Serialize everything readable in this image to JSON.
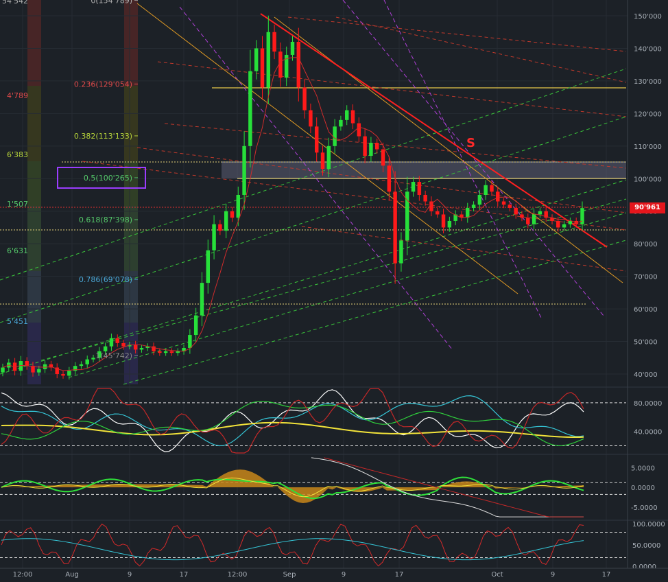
{
  "chart_data": [
    {
      "type": "candlestick",
      "pane": "price",
      "y_axis_ticks": [
        "150'000",
        "140'000",
        "130'000",
        "120'000",
        "110'000",
        "100'000",
        "90'000",
        "80'000",
        "70'000",
        "60'000",
        "50'000",
        "40'000"
      ],
      "y_axis_values": [
        150000,
        140000,
        130000,
        120000,
        110000,
        100000,
        90000,
        80000,
        70000,
        60000,
        50000,
        40000
      ],
      "ylim": [
        36000,
        155000
      ],
      "x_axis_ticks": [
        "12:00",
        "Aug",
        "9",
        "17",
        "12:00",
        "Sep",
        "9",
        "17",
        "Oct",
        "9",
        "17"
      ],
      "last_price_label": "90'961",
      "last_price": 90961,
      "annotation_letter": "S",
      "fibonacci_levels": [
        {
          "label": "0(154'789)",
          "value": 154789,
          "color": "#b0b0b0"
        },
        {
          "label": "0.236(129'054)",
          "value": 129054,
          "color": "#e04a4a"
        },
        {
          "label": "0.382(113'133)",
          "value": 113133,
          "color": "#b6d33a"
        },
        {
          "label": "0.5(100'265)",
          "value": 100265,
          "color": "#55c96a"
        },
        {
          "label": "0.618(87'398)",
          "value": 87398,
          "color": "#55c96a"
        },
        {
          "label": "0.786(69'078)",
          "value": 69078,
          "color": "#4aa8d8"
        },
        {
          "label": "1(45'742)",
          "value": 45742,
          "color": "#888888"
        }
      ],
      "left_edge_fib_labels": [
        {
          "label": "54'542",
          "color": "#b0b0b0"
        },
        {
          "label": "4'789",
          "color": "#e04a4a"
        },
        {
          "label": "6'383",
          "color": "#b6d33a"
        },
        {
          "label": "1'507",
          "color": "#55c96a"
        },
        {
          "label": "6'631",
          "color": "#55c96a"
        },
        {
          "label": "5'451",
          "color": "#4aa8d8"
        }
      ],
      "candles_close": [
        42000,
        43500,
        41000,
        44000,
        42500,
        40500,
        41500,
        43000,
        42000,
        40000,
        39500,
        41000,
        42500,
        43000,
        44500,
        45000,
        47000,
        48500,
        51000,
        49500,
        48500,
        49000,
        47500,
        48000,
        48500,
        47000,
        46500,
        47000,
        46500,
        47000,
        48000,
        52000,
        58000,
        68000,
        78000,
        86000,
        84000,
        90000,
        88000,
        95000,
        110000,
        133000,
        140000,
        128000,
        145000,
        139000,
        131000,
        138000,
        142000,
        128000,
        121000,
        116000,
        108000,
        103000,
        110000,
        116000,
        118000,
        121000,
        117000,
        113000,
        107000,
        111000,
        109000,
        104000,
        96000,
        74000,
        81000,
        96000,
        99000,
        95000,
        93000,
        90000,
        89000,
        85000,
        87000,
        89000,
        88000,
        91000,
        92000,
        95000,
        98000,
        96000,
        93000,
        92000,
        91000,
        89000,
        88000,
        86000,
        89000,
        90000,
        88000,
        87000,
        85000,
        86000,
        87000,
        86000,
        90961
      ],
      "colors": {
        "up": "#27e03a",
        "down": "#ff1a1a",
        "background": "#1c2127"
      }
    },
    {
      "type": "line",
      "pane": "oscillator-1",
      "y_axis_ticks": [
        "80.0000",
        "40.0000"
      ],
      "ylim": [
        10,
        100
      ],
      "series_colors": [
        "#ffffff",
        "#35c5d6",
        "#f2e33a",
        "#2fd13c",
        "#c62828"
      ]
    },
    {
      "type": "area",
      "pane": "oscillator-2",
      "y_axis_ticks": [
        "5.0000",
        "0.0000",
        "-5.0000"
      ],
      "ylim": [
        -8,
        8
      ]
    },
    {
      "type": "line",
      "pane": "oscillator-3",
      "y_axis_ticks": [
        "100.0000",
        "50.0000",
        "0.0000"
      ],
      "ylim": [
        -5,
        105
      ]
    }
  ]
}
